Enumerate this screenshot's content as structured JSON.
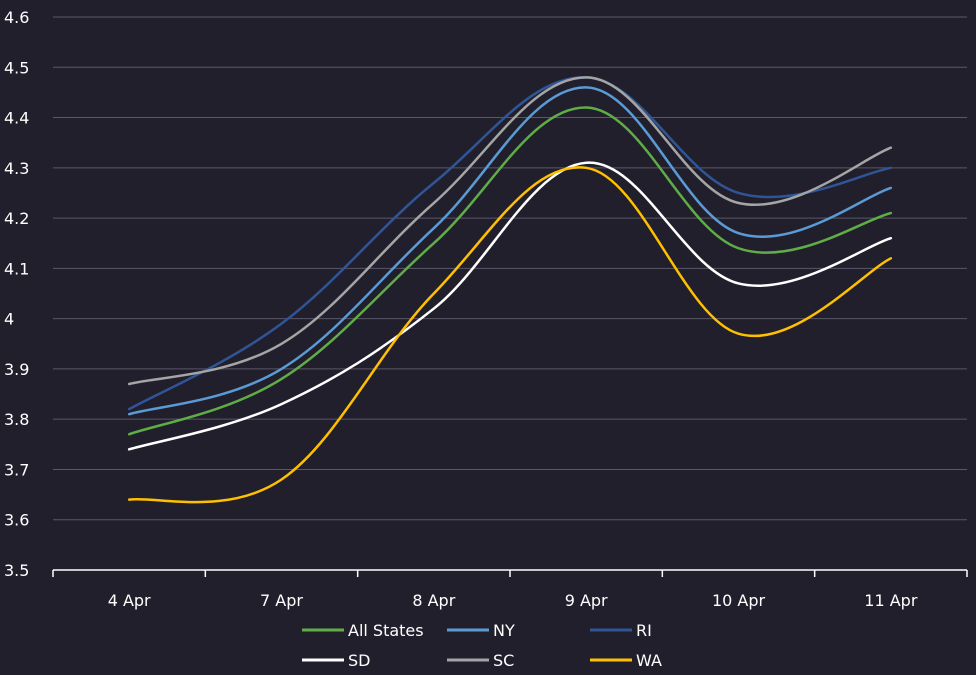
{
  "chart_data": {
    "type": "line",
    "title": "",
    "xlabel": "",
    "ylabel": "",
    "categories": [
      "4 Apr",
      "7 Apr",
      "8 Apr",
      "9 Apr",
      "10 Apr",
      "11 Apr"
    ],
    "ylim": [
      3.5,
      4.6
    ],
    "yticks": [
      "3.5",
      "3.6",
      "3.7",
      "3.8",
      "3.9",
      "4",
      "4.1",
      "4.2",
      "4.3",
      "4.4",
      "4.5",
      "4.6"
    ],
    "grid": true,
    "legend_position": "bottom",
    "series": [
      {
        "name": "All States",
        "color": "#5fad46",
        "values": [
          3.77,
          3.88,
          4.15,
          4.42,
          4.14,
          4.21
        ]
      },
      {
        "name": "NY",
        "color": "#5b9bd5",
        "values": [
          3.81,
          3.9,
          4.18,
          4.46,
          4.17,
          4.26
        ]
      },
      {
        "name": "RI",
        "color": "#2f5597",
        "values": [
          3.82,
          3.99,
          4.27,
          4.48,
          4.25,
          4.3
        ]
      },
      {
        "name": "SD",
        "color": "#ffffff",
        "values": [
          3.74,
          3.83,
          4.02,
          4.31,
          4.07,
          4.16
        ]
      },
      {
        "name": "SC",
        "color": "#a5a5a5",
        "values": [
          3.87,
          3.95,
          4.23,
          4.48,
          4.23,
          4.34
        ]
      },
      {
        "name": "WA",
        "color": "#ffc000",
        "values": [
          3.64,
          3.68,
          4.05,
          4.3,
          3.97,
          4.12
        ]
      }
    ]
  }
}
